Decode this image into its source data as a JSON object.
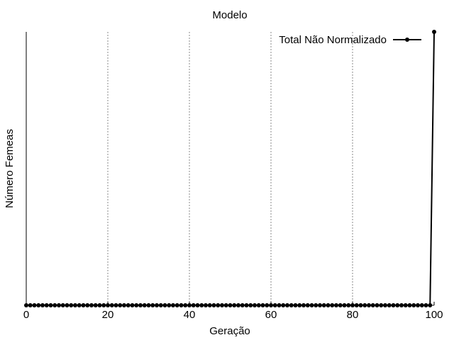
{
  "chart_data": {
    "type": "line",
    "title": "Modelo",
    "xlabel": "Geração",
    "ylabel": "Número Femeas",
    "xlim": [
      0,
      100
    ],
    "ylim": [
      0,
      1
    ],
    "x_ticks": [
      "0",
      "20",
      "40",
      "60",
      "80",
      "100"
    ],
    "y_ticks": [],
    "grid": "vertical dotted",
    "legend": "top-right",
    "series": [
      {
        "name": "Total Não Normalizado",
        "color": "#000000",
        "marker": "circle",
        "x": [
          0,
          1,
          2,
          3,
          4,
          5,
          6,
          7,
          8,
          9,
          10,
          11,
          12,
          13,
          14,
          15,
          16,
          17,
          18,
          19,
          20,
          21,
          22,
          23,
          24,
          25,
          26,
          27,
          28,
          29,
          30,
          31,
          32,
          33,
          34,
          35,
          36,
          37,
          38,
          39,
          40,
          41,
          42,
          43,
          44,
          45,
          46,
          47,
          48,
          49,
          50,
          51,
          52,
          53,
          54,
          55,
          56,
          57,
          58,
          59,
          60,
          61,
          62,
          63,
          64,
          65,
          66,
          67,
          68,
          69,
          70,
          71,
          72,
          73,
          74,
          75,
          76,
          77,
          78,
          79,
          80,
          81,
          82,
          83,
          84,
          85,
          86,
          87,
          88,
          89,
          90,
          91,
          92,
          93,
          94,
          95,
          96,
          97,
          98,
          99,
          100
        ],
        "y": [
          0,
          0,
          0,
          0,
          0,
          0,
          0,
          0,
          0,
          0,
          0,
          0,
          0,
          0,
          0,
          0,
          0,
          0,
          0,
          0,
          0,
          0,
          0,
          0,
          0,
          0,
          0,
          0,
          0,
          0,
          0,
          0,
          0,
          0,
          0,
          0,
          0,
          0,
          0,
          0,
          0,
          0,
          0,
          0,
          0,
          0,
          0,
          0,
          0,
          0,
          0,
          0,
          0,
          0,
          0,
          0,
          0,
          0,
          0,
          0,
          0,
          0,
          0,
          0,
          0,
          0,
          0,
          0,
          0,
          0,
          0,
          0,
          0,
          0,
          0,
          0,
          0,
          0,
          0,
          0,
          0,
          0,
          0,
          0,
          0,
          0,
          0,
          0,
          0,
          0,
          0,
          0,
          0,
          0,
          0,
          0,
          0,
          0,
          0,
          0,
          1
        ]
      }
    ]
  }
}
